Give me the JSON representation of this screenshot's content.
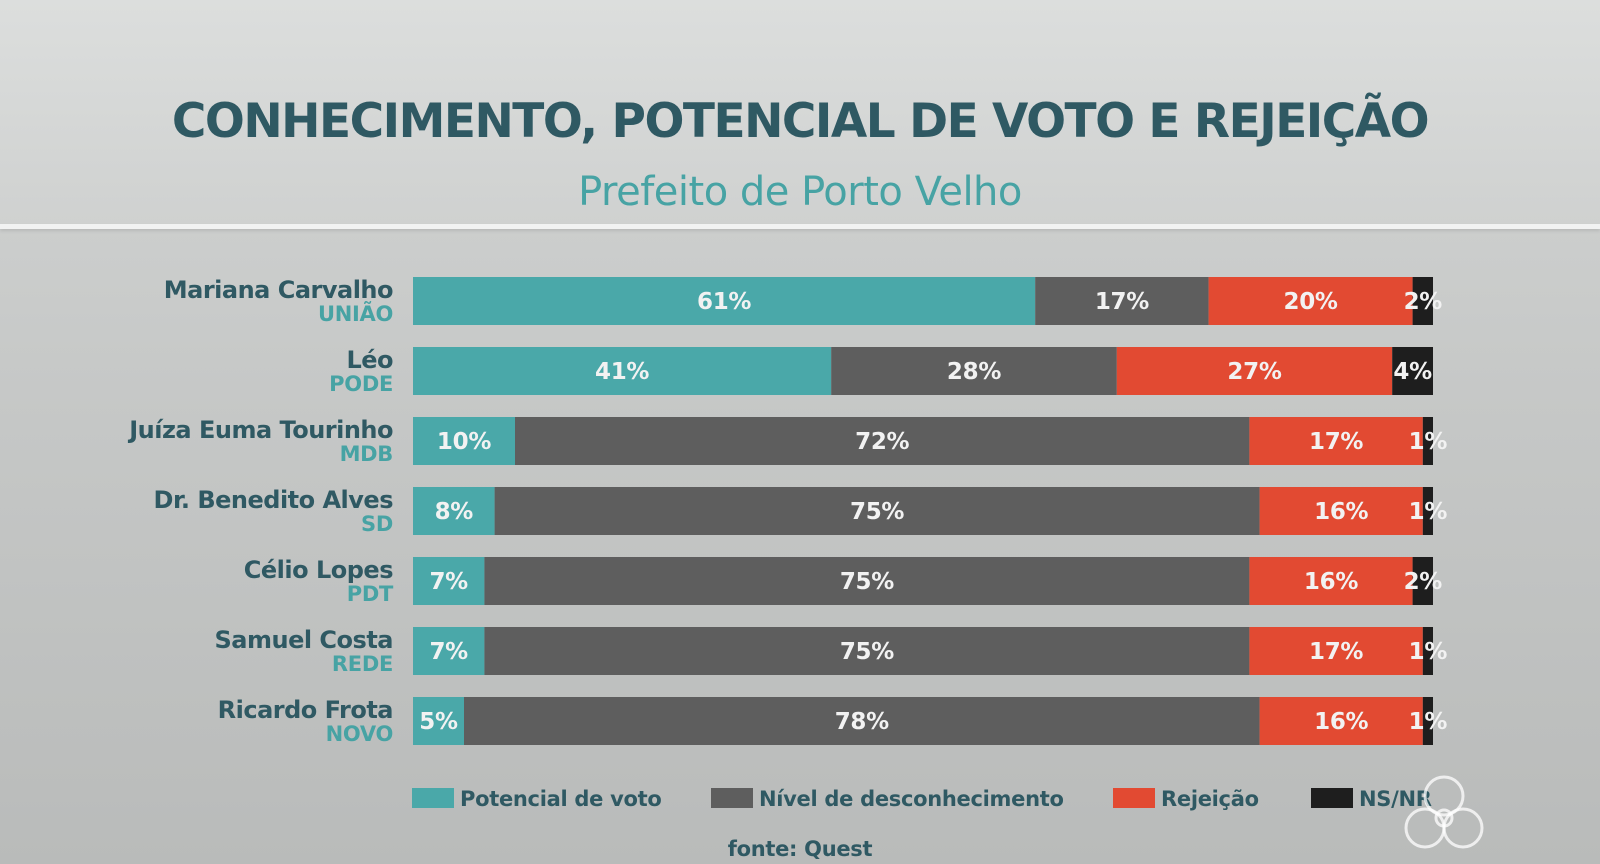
{
  "title": "CONHECIMENTO, POTENCIAL DE VOTO E REJEIÇÃO",
  "subtitle": "Prefeito de Porto Velho",
  "source": "fonte: Quest",
  "legend": [
    {
      "label": "Potencial de voto",
      "color": "#4aa8a9"
    },
    {
      "label": "Nível de desconhecimento",
      "color": "#5e5e5e"
    },
    {
      "label": "Rejeição",
      "color": "#e24a32"
    },
    {
      "label": "NS/NR",
      "color": "#1e1e1e"
    }
  ],
  "colors": {
    "title": "#2f5963",
    "subtitle": "#47a3a4",
    "candidate_name": "#2f5963",
    "party": "#47a3a4",
    "bar_label": "#f2f2f2"
  },
  "chart_data": {
    "type": "bar",
    "orientation": "horizontal",
    "stacked": true,
    "title": "CONHECIMENTO, POTENCIAL DE VOTO E REJEIÇÃO",
    "subtitle": "Prefeito de Porto Velho",
    "xlim": [
      0,
      100
    ],
    "categories": [
      {
        "name": "Mariana Carvalho",
        "party": "UNIÃO"
      },
      {
        "name": "Léo",
        "party": "PODE"
      },
      {
        "name": "Juíza Euma Tourinho",
        "party": "MDB"
      },
      {
        "name": "Dr. Benedito Alves",
        "party": "SD"
      },
      {
        "name": "Célio Lopes",
        "party": "PDT"
      },
      {
        "name": "Samuel Costa",
        "party": "REDE"
      },
      {
        "name": "Ricardo Frota",
        "party": "NOVO"
      }
    ],
    "series": [
      {
        "name": "Potencial de voto",
        "values": [
          61,
          41,
          10,
          8,
          7,
          7,
          5
        ]
      },
      {
        "name": "Nível de desconhecimento",
        "values": [
          17,
          28,
          72,
          75,
          75,
          75,
          78
        ]
      },
      {
        "name": "Rejeição",
        "values": [
          20,
          27,
          17,
          16,
          16,
          17,
          16
        ]
      },
      {
        "name": "NS/NR",
        "values": [
          2,
          4,
          1,
          1,
          2,
          1,
          1
        ]
      }
    ],
    "unit": "%",
    "legend_position": "bottom",
    "grid": false
  }
}
